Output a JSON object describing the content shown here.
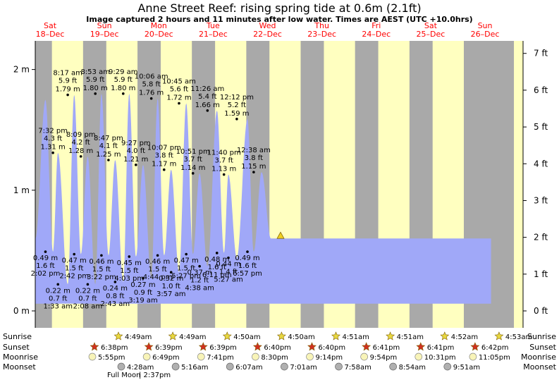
{
  "header": {
    "title": "Anne Street Reef: rising  spring tide at 0.6m (2.1ft)",
    "subtitle": "Image captured 2 hours and 11 minutes after low water. Times are AEST (UTC +10.0hrs)"
  },
  "chart_data": {
    "type": "area",
    "xlim": [
      0,
      8.55
    ],
    "ylim_m": [
      -0.08,
      2.25
    ],
    "ylim_ft": [
      -0.26,
      7.38
    ],
    "y_ticks_m": [
      0,
      1,
      2
    ],
    "y_tick_labels_m": [
      "0 m",
      "1 m",
      "2 m"
    ],
    "y_ticks_ft": [
      0,
      1,
      2,
      3,
      4,
      5,
      6,
      7
    ],
    "y_tick_labels_ft": [
      "0 ft",
      "1 ft",
      "2 ft",
      "3 ft",
      "4 ft",
      "5 ft",
      "6 ft",
      "7 ft"
    ],
    "days": [
      {
        "day": "Sat",
        "date": "18–Dec"
      },
      {
        "day": "Sun",
        "date": "19–Dec"
      },
      {
        "day": "Mon",
        "date": "20–Dec"
      },
      {
        "day": "Tue",
        "date": "21–Dec"
      },
      {
        "day": "Wed",
        "date": "22–Dec"
      },
      {
        "day": "Thu",
        "date": "23–Dec"
      },
      {
        "day": "Fri",
        "date": "24–Dec"
      },
      {
        "day": "Sat",
        "date": "25–Dec"
      },
      {
        "day": "Sun",
        "date": "26–Dec"
      }
    ],
    "night_bands": [
      [
        -1,
        0.203
      ],
      [
        0.776,
        1.203
      ],
      [
        1.777,
        2.204
      ],
      [
        2.777,
        3.204
      ],
      [
        3.778,
        4.204
      ],
      [
        4.778,
        5.205
      ],
      [
        5.778,
        6.205
      ],
      [
        6.779,
        7.205
      ],
      [
        7.779,
        8.7
      ]
    ],
    "curve": {
      "t": [
        -0.1,
        0.084,
        0.222,
        0.314,
        0.494,
        0.612,
        0.735,
        0.861,
        1.001,
        1.114,
        1.243,
        1.366,
        1.514,
        1.624,
        1.748,
        1.88,
        2.031,
        2.147,
        2.266,
        2.395,
        2.541,
        2.673,
        2.797,
        2.919,
        3.064,
        3.238,
        3.367,
        3.449,
        3.603,
        3.799,
        3.914,
        4.059,
        4.23,
        4.438,
        4.544,
        4.688,
        4.867,
        5.061,
        5.182,
        5.278,
        5.466,
        5.71,
        5.821,
        5.946,
        6.16,
        6.356,
        6.497,
        6.66,
        7.012,
        7.15
      ],
      "h": [
        0.6,
        1.75,
        0.49,
        1.31,
        0.22,
        1.79,
        0.47,
        1.28,
        0.22,
        1.8,
        0.46,
        1.25,
        0.24,
        1.8,
        0.45,
        1.21,
        0.27,
        1.76,
        0.46,
        1.17,
        0.32,
        1.72,
        0.47,
        1.14,
        0.37,
        1.66,
        0.48,
        1.13,
        0.44,
        1.59,
        0.49,
        1.15,
        0.6,
        0.6,
        0.6,
        0.6,
        0.6,
        0.6,
        0.6,
        0.6,
        0.6,
        0.6,
        0.6,
        0.6,
        0.6,
        0.6,
        0.6,
        0.6,
        0.6,
        0.6
      ]
    },
    "curve_end": 8.28,
    "tides": [
      {
        "time": "2:02 pm",
        "m": 0.49,
        "ft": "1.6 ft",
        "m_label": "0.49 m",
        "type": "low"
      },
      {
        "time": "7:32 pm",
        "m": 1.31,
        "ft": "4.3 ft",
        "m_label": "1.31 m",
        "type": "high"
      },
      {
        "time": "1:33 am",
        "m": 0.22,
        "ft": "0.7 ft",
        "m_label": "0.22 m",
        "type": "low"
      },
      {
        "time": "8:17 am",
        "m": 1.79,
        "ft": "5.9 ft",
        "m_label": "1.79 m",
        "type": "high"
      },
      {
        "time": "2:42 pm",
        "m": 0.47,
        "ft": "1.5 ft",
        "m_label": "0.47 m",
        "type": "low"
      },
      {
        "time": "8:09 pm",
        "m": 1.28,
        "ft": "4.2 ft",
        "m_label": "1.28 m",
        "type": "high"
      },
      {
        "time": "2:08 am",
        "m": 0.22,
        "ft": "0.7 ft",
        "m_label": "0.22 m",
        "type": "low"
      },
      {
        "time": "8:53 am",
        "m": 1.8,
        "ft": "5.9 ft",
        "m_label": "1.80 m",
        "type": "high"
      },
      {
        "time": "3:22 pm",
        "m": 0.46,
        "ft": "1.5 ft",
        "m_label": "0.46 m",
        "type": "low"
      },
      {
        "time": "8:47 pm",
        "m": 1.25,
        "ft": "4.1 ft",
        "m_label": "1.25 m",
        "type": "high"
      },
      {
        "time": "2:43 am",
        "m": 0.24,
        "ft": "0.8 ft",
        "m_label": "0.24 m",
        "type": "low"
      },
      {
        "time": "9:29 am",
        "m": 1.8,
        "ft": "5.9 ft",
        "m_label": "1.80 m",
        "type": "high"
      },
      {
        "time": "4:03 pm",
        "m": 0.45,
        "ft": "1.5 ft",
        "m_label": "0.45 m",
        "type": "low"
      },
      {
        "time": "9:27 pm",
        "m": 1.21,
        "ft": "4.0 ft",
        "m_label": "1.21 m",
        "type": "high"
      },
      {
        "time": "3:19 am",
        "m": 0.27,
        "ft": "0.9 ft",
        "m_label": "0.27 m",
        "type": "low"
      },
      {
        "time": "10:06 am",
        "m": 1.76,
        "ft": "5.8 ft",
        "m_label": "1.76 m",
        "type": "high"
      },
      {
        "time": "4:44 pm",
        "m": 0.46,
        "ft": "1.5 ft",
        "m_label": "0.46 m",
        "type": "low"
      },
      {
        "time": "10:07 pm",
        "m": 1.17,
        "ft": "3.8 ft",
        "m_label": "1.17 m",
        "type": "high"
      },
      {
        "time": "3:57 am",
        "m": 0.32,
        "ft": "1.0 ft",
        "m_label": "0.32 m",
        "type": "low"
      },
      {
        "time": "10:45 am",
        "m": 1.72,
        "ft": "5.6 ft",
        "m_label": "1.72 m",
        "type": "high"
      },
      {
        "time": "5:27 pm",
        "m": 0.47,
        "ft": "1.5 ft",
        "m_label": "0.47 m",
        "type": "low"
      },
      {
        "time": "10:51 pm",
        "m": 1.14,
        "ft": "3.7 ft",
        "m_label": "1.14 m",
        "type": "high"
      },
      {
        "time": "4:38 am",
        "m": 0.37,
        "ft": "1.2 ft",
        "m_label": "0.37 m",
        "type": "low"
      },
      {
        "time": "11:26 am",
        "m": 1.66,
        "ft": "5.4 ft",
        "m_label": "1.66 m",
        "type": "high"
      },
      {
        "time": "6:11 pm",
        "m": 0.48,
        "ft": "1.6 ft",
        "m_label": "0.48 m",
        "type": "low"
      },
      {
        "time": "11:40 pm",
        "m": 1.13,
        "ft": "3.7 ft",
        "m_label": "1.13 m",
        "type": "high"
      },
      {
        "time": "5:27 am",
        "m": 0.44,
        "ft": "1.4 ft",
        "m_label": "0.44 m",
        "type": "low"
      },
      {
        "time": "12:12 pm",
        "m": 1.59,
        "ft": "5.2 ft",
        "m_label": "1.59 m",
        "type": "high"
      },
      {
        "time": "6:57 pm",
        "m": 0.49,
        "ft": "1.6 ft",
        "m_label": "0.49 m",
        "type": "low"
      },
      {
        "time": "12:38 am",
        "m": 1.15,
        "ft": "3.8 ft",
        "m_label": "1.15 m",
        "type": "high"
      }
    ],
    "current": {
      "m": 0.6
    },
    "astro_labels": [
      "Sunrise",
      "Sunset",
      "Moonrise",
      "Moonset"
    ],
    "sunrise": [
      "4:49am",
      "4:49am",
      "4:50am",
      "4:50am",
      "4:51am",
      "4:51am",
      "4:52am",
      "4:53am"
    ],
    "sunset": [
      "6:38pm",
      "6:39pm",
      "6:39pm",
      "6:40pm",
      "6:40pm",
      "6:41pm",
      "6:41pm",
      "6:42pm"
    ],
    "moonrise": [
      "5:55pm",
      "6:49pm",
      "7:41pm",
      "8:30pm",
      "9:14pm",
      "9:54pm",
      "10:31pm",
      "11:05pm"
    ],
    "moonset": [
      "4:28am",
      "5:16am",
      "6:07am",
      "7:01am",
      "7:58am",
      "8:54am",
      "9:51am"
    ],
    "moon_phase": "Full Moon",
    "moon_phase_time": "2:37pm",
    "colors": {
      "day": "#ffffc0",
      "night": "#a9a9a9",
      "water": "#a0a8f8",
      "date_text": "#ff0000",
      "sunrise_star": "#e8d840",
      "sunset_star": "#d03020",
      "moon": "#f8f4b8",
      "moonset": "#b0b0b0"
    }
  }
}
